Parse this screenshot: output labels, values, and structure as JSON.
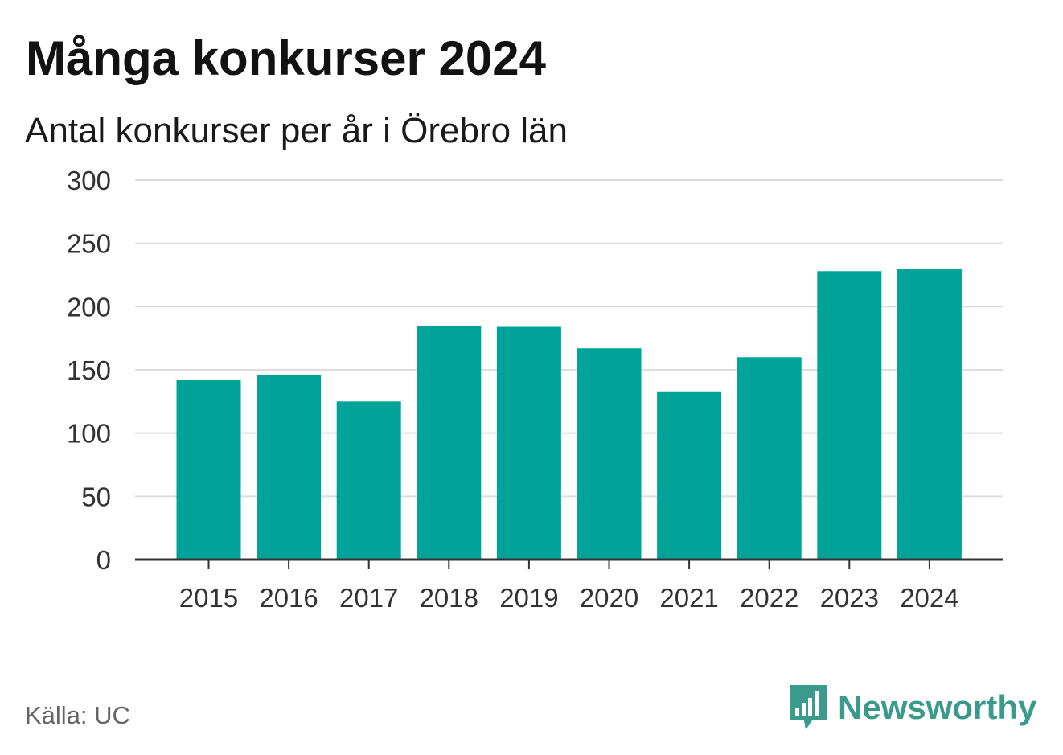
{
  "header": {
    "title": "Många konkurser 2024",
    "subtitle": "Antal konkurser per år i Örebro län"
  },
  "footer": {
    "source": "Källa: UC",
    "brand": "Newsworthy"
  },
  "colors": {
    "bar": "#00a398",
    "grid": "#dddddd",
    "axis": "#333333",
    "brand": "#3a9a8c"
  },
  "chart_data": {
    "type": "bar",
    "title": "Många konkurser 2024",
    "subtitle": "Antal konkurser per år i Örebro län",
    "xlabel": "",
    "ylabel": "",
    "categories": [
      "2015",
      "2016",
      "2017",
      "2018",
      "2019",
      "2020",
      "2021",
      "2022",
      "2023",
      "2024"
    ],
    "values": [
      142,
      146,
      125,
      185,
      184,
      167,
      133,
      160,
      228,
      230
    ],
    "ylim": [
      0,
      300
    ],
    "yticks": [
      0,
      50,
      100,
      150,
      200,
      250,
      300
    ],
    "grid": true,
    "legend": "none"
  }
}
